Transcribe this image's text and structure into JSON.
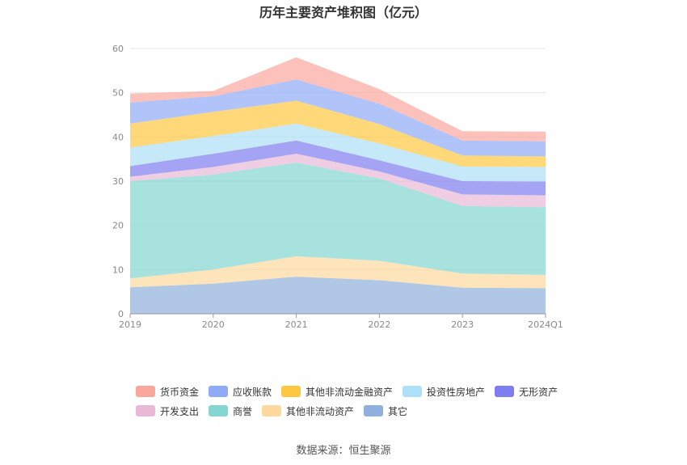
{
  "chart_data": {
    "type": "area",
    "stacked": true,
    "title": "历年主要资产堆积图（亿元）",
    "categories": [
      "2019",
      "2020",
      "2021",
      "2022",
      "2023",
      "2024Q1"
    ],
    "ylim": [
      0,
      60
    ],
    "yticks": [
      "0",
      "10",
      "20",
      "30",
      "40",
      "50",
      "60"
    ],
    "grid": true,
    "legend_position": "bottom",
    "series": [
      {
        "name": "其它",
        "color": "#8fb0dc",
        "values": [
          6.0,
          6.8,
          8.4,
          7.6,
          5.9,
          5.8
        ]
      },
      {
        "name": "其他非流动资产",
        "color": "#fdd99e",
        "values": [
          2.0,
          3.2,
          4.6,
          4.4,
          3.2,
          3.0
        ]
      },
      {
        "name": "商誉",
        "color": "#83d6d2",
        "values": [
          22.0,
          21.5,
          21.2,
          18.6,
          15.3,
          15.3
        ]
      },
      {
        "name": "开发支出",
        "color": "#e8b8d6",
        "values": [
          1.0,
          1.7,
          2.0,
          1.6,
          2.6,
          2.7
        ]
      },
      {
        "name": "无形资产",
        "color": "#7f7ef0",
        "values": [
          2.4,
          3.0,
          3.0,
          2.5,
          3.0,
          3.1
        ]
      },
      {
        "name": "投资性房地产",
        "color": "#aee0f7",
        "values": [
          4.2,
          4.0,
          3.8,
          3.8,
          3.3,
          3.3
        ]
      },
      {
        "name": "其他非流动金融资产",
        "color": "#fdc840",
        "values": [
          5.4,
          5.5,
          5.2,
          4.4,
          2.5,
          2.4
        ]
      },
      {
        "name": "应收账款",
        "color": "#8fabf8",
        "values": [
          4.8,
          3.5,
          4.8,
          4.6,
          3.4,
          3.4
        ]
      },
      {
        "name": "货币资金",
        "color": "#f9a69c",
        "values": [
          2.0,
          1.2,
          5.0,
          3.3,
          2.1,
          2.2
        ]
      }
    ]
  },
  "legend_rows": [
    [
      "货币资金",
      "应收账款",
      "其他非流动金融资产",
      "投资性房地产",
      "无形资产"
    ],
    [
      "开发支出",
      "商誉",
      "其他非流动资产",
      "其它"
    ]
  ],
  "source": "数据来源：恒生聚源"
}
